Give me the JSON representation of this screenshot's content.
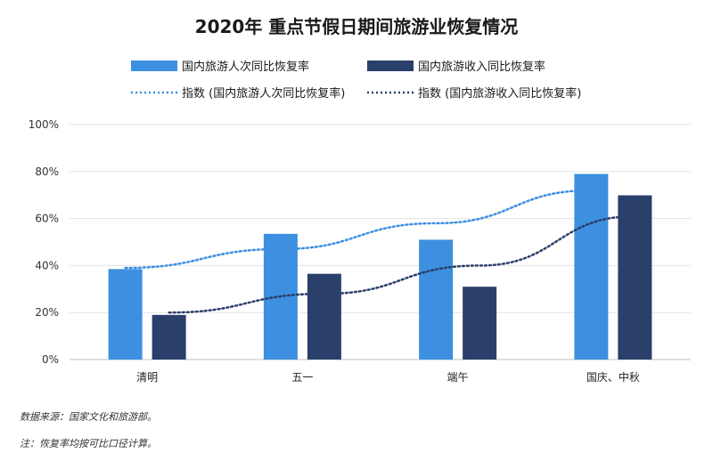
{
  "chart_data": {
    "type": "bar",
    "title": "2020年  重点节假日期间旅游业恢复情况",
    "categories": [
      "清明",
      "五一",
      "端午",
      "国庆、中秋"
    ],
    "series": [
      {
        "name": "国内旅游人次同比恢复率",
        "values": [
          38.5,
          53.5,
          51,
          79
        ],
        "color": "#3d8fe0"
      },
      {
        "name": "国内旅游收入同比恢复率",
        "values": [
          19,
          36.5,
          31,
          69.9
        ],
        "color": "#2b3f6b"
      }
    ],
    "trendlines": [
      {
        "name": "指数 (国内旅游人次同比恢复率)",
        "values": [
          39,
          47,
          58,
          72
        ],
        "color": "#3d8fe0"
      },
      {
        "name": "指数 (国内旅游收入同比恢复率)",
        "values": [
          20,
          28,
          40,
          61
        ],
        "color": "#2b3f6b"
      }
    ],
    "yticks": [
      "0%",
      "20%",
      "40%",
      "60%",
      "80%",
      "100%"
    ],
    "ylim": [
      0,
      100
    ],
    "grid": true,
    "legend": "top",
    "notes": [
      "数据来源：国家文化和旅游部。",
      "注：恢复率均按可比口径计算。"
    ]
  }
}
